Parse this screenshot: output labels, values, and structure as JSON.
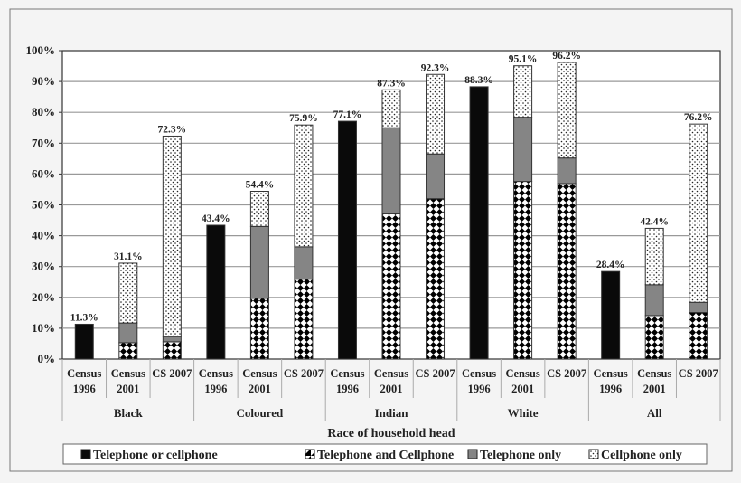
{
  "chart_data": {
    "type": "bar",
    "stacked": true,
    "title": "",
    "xlabel": "Race of household head",
    "ylabel": "",
    "ylim": [
      0,
      100
    ],
    "yticks": [
      "0%",
      "10%",
      "20%",
      "30%",
      "40%",
      "50%",
      "60%",
      "70%",
      "80%",
      "90%",
      "100%"
    ],
    "grid": true,
    "legend_position": "bottom",
    "groups": [
      {
        "name": "Black",
        "categories": [
          {
            "label": [
              "Census",
              "1996"
            ],
            "total_label": "11.3%",
            "segments": {
              "telephone_or_cellphone": 11.3
            }
          },
          {
            "label": [
              "Census",
              "2001"
            ],
            "total_label": "31.1%",
            "segments": {
              "telephone_and_cellphone": 5.3,
              "telephone_only": 6.4,
              "cellphone_only": 19.4
            }
          },
          {
            "label": [
              "CS 2007"
            ],
            "total_label": "72.3%",
            "segments": {
              "telephone_and_cellphone": 5.6,
              "telephone_only": 1.7,
              "cellphone_only": 65.0
            }
          }
        ]
      },
      {
        "name": "Coloured",
        "categories": [
          {
            "label": [
              "Census",
              "1996"
            ],
            "total_label": "43.4%",
            "segments": {
              "telephone_or_cellphone": 43.4
            }
          },
          {
            "label": [
              "Census",
              "2001"
            ],
            "total_label": "54.4%",
            "segments": {
              "telephone_and_cellphone": 19.7,
              "telephone_only": 23.3,
              "cellphone_only": 11.4
            }
          },
          {
            "label": [
              "CS 2007"
            ],
            "total_label": "75.9%",
            "segments": {
              "telephone_and_cellphone": 25.9,
              "telephone_only": 10.5,
              "cellphone_only": 39.5
            }
          }
        ]
      },
      {
        "name": "Indian",
        "categories": [
          {
            "label": [
              "Census",
              "1996"
            ],
            "total_label": "77.1%",
            "segments": {
              "telephone_or_cellphone": 77.1
            }
          },
          {
            "label": [
              "Census",
              "2001"
            ],
            "total_label": "87.3%",
            "segments": {
              "telephone_and_cellphone": 47.1,
              "telephone_only": 27.9,
              "cellphone_only": 12.3
            }
          },
          {
            "label": [
              "CS 2007"
            ],
            "total_label": "92.3%",
            "segments": {
              "telephone_and_cellphone": 52.0,
              "telephone_only": 14.5,
              "cellphone_only": 25.8
            }
          }
        ]
      },
      {
        "name": "White",
        "categories": [
          {
            "label": [
              "Census",
              "1996"
            ],
            "total_label": "88.3%",
            "segments": {
              "telephone_or_cellphone": 88.3
            }
          },
          {
            "label": [
              "Census",
              "2001"
            ],
            "total_label": "95.1%",
            "segments": {
              "telephone_and_cellphone": 57.6,
              "telephone_only": 20.8,
              "cellphone_only": 16.7
            }
          },
          {
            "label": [
              "CS 2007"
            ],
            "total_label": "96.2%",
            "segments": {
              "telephone_and_cellphone": 56.9,
              "telephone_only": 8.3,
              "cellphone_only": 31.0
            }
          }
        ]
      },
      {
        "name": "All",
        "categories": [
          {
            "label": [
              "Census",
              "1996"
            ],
            "total_label": "28.4%",
            "segments": {
              "telephone_or_cellphone": 28.4
            }
          },
          {
            "label": [
              "Census",
              "2001"
            ],
            "total_label": "42.4%",
            "segments": {
              "telephone_and_cellphone": 14.1,
              "telephone_only": 10.0,
              "cellphone_only": 18.3
            }
          },
          {
            "label": [
              "CS 2007"
            ],
            "total_label": "76.2%",
            "segments": {
              "telephone_and_cellphone": 15.1,
              "telephone_only": 3.3,
              "cellphone_only": 57.8
            }
          }
        ]
      }
    ],
    "series": [
      {
        "key": "telephone_or_cellphone",
        "name": "Telephone or cellphone",
        "pattern": "solid-black",
        "color": "#0a0a0a"
      },
      {
        "key": "telephone_and_cellphone",
        "name": "Telephone and Cellphone",
        "pattern": "checkerboard-diamonds",
        "color": "#000000"
      },
      {
        "key": "telephone_only",
        "name": "Telephone only",
        "pattern": "solid-gray",
        "color": "#858585"
      },
      {
        "key": "cellphone_only",
        "name": "Cellphone only",
        "pattern": "dots",
        "color": "#ffffff"
      }
    ]
  }
}
